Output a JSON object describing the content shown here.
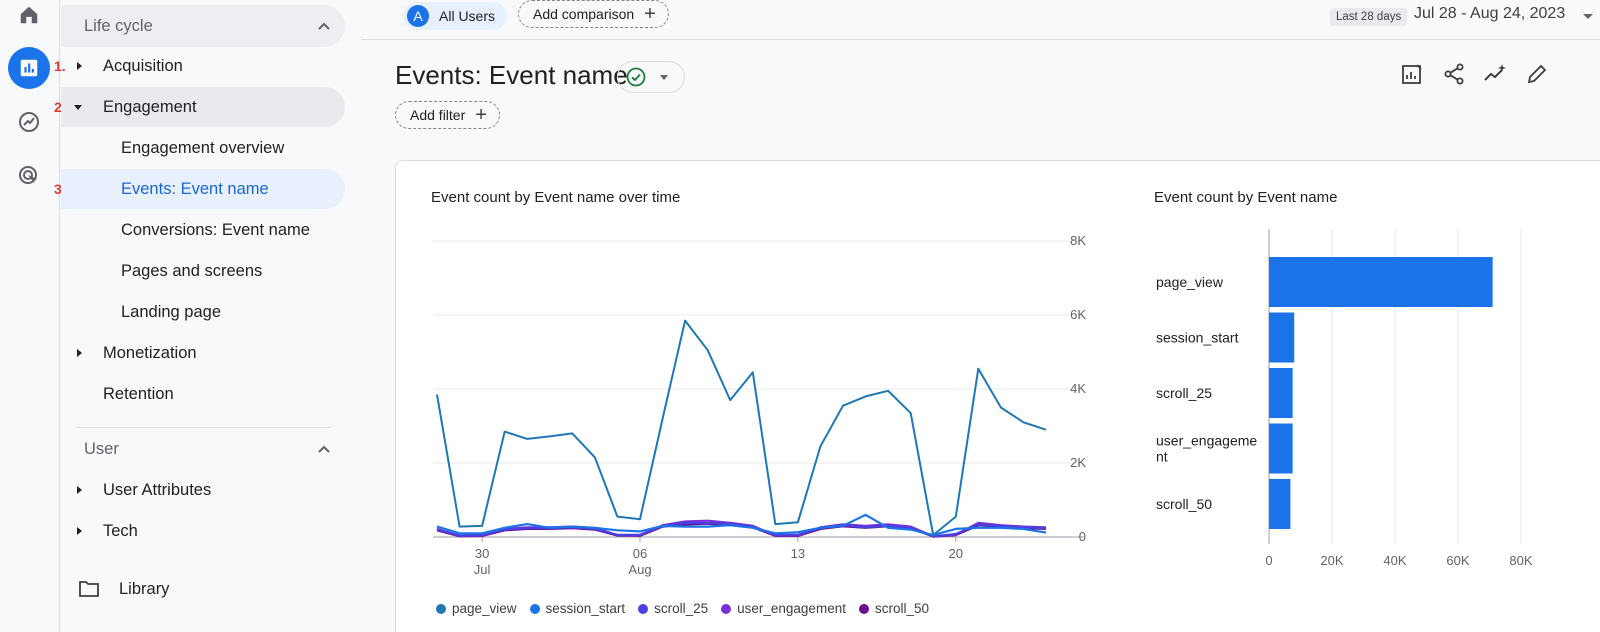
{
  "nav": {
    "lifecycle_label": "Life cycle",
    "user_label": "User",
    "library_label": "Library",
    "annotations": [
      "1.",
      "2.",
      "3."
    ],
    "items": {
      "acquisition": "Acquisition",
      "engagement": "Engagement",
      "engagement_overview": "Engagement overview",
      "events_event_name": "Events: Event name",
      "conversions": "Conversions: Event name",
      "pages_screens": "Pages and screens",
      "landing_page": "Landing page",
      "monetization": "Monetization",
      "retention": "Retention",
      "user_attributes": "User Attributes",
      "tech": "Tech"
    }
  },
  "topbar": {
    "segment_avatar": "A",
    "segment_label": "All Users",
    "add_comparison": "Add comparison",
    "date_range_badge": "Last 28 days",
    "date_range": "Jul 28 - Aug 24, 2023"
  },
  "page": {
    "title": "Events: Event name",
    "add_filter": "Add filter"
  },
  "colors": {
    "accent": "#1a73e8",
    "page_view": "#1f77b4",
    "session_start": "#1a73e8",
    "scroll_25": "#4a3fe0",
    "user_engagement": "#7b2fd8",
    "scroll_50": "#6a0f8e",
    "bar": "#1a73e8"
  },
  "chart_data": [
    {
      "type": "line",
      "title": "Event count by Event name over time",
      "x_tick_labels": [
        {
          "day": "30",
          "month": "Jul",
          "index": 2
        },
        {
          "day": "06",
          "month": "Aug",
          "index": 9
        },
        {
          "day": "13",
          "month": "",
          "index": 16
        },
        {
          "day": "20",
          "month": "",
          "index": 23
        }
      ],
      "y_ticks": [
        "0",
        "2K",
        "4K",
        "6K",
        "8K"
      ],
      "ylim": [
        0,
        8000
      ],
      "yaxis_side": "right",
      "grid": true,
      "legend_position": "bottom",
      "series": [
        {
          "name": "page_view",
          "values": [
            3850,
            280,
            300,
            2850,
            2650,
            2720,
            2800,
            2150,
            550,
            480,
            3200,
            5850,
            5050,
            3700,
            4450,
            350,
            400,
            2450,
            3550,
            3800,
            3950,
            3350,
            50,
            550,
            4550,
            3500,
            3100,
            2900
          ]
        },
        {
          "name": "session_start",
          "values": [
            280,
            100,
            100,
            250,
            350,
            250,
            280,
            250,
            180,
            150,
            300,
            280,
            280,
            320,
            250,
            100,
            130,
            250,
            300,
            600,
            250,
            200,
            50,
            220,
            250,
            250,
            220,
            120
          ]
        },
        {
          "name": "scroll_25",
          "values": [
            200,
            40,
            60,
            200,
            240,
            240,
            260,
            220,
            60,
            60,
            300,
            380,
            380,
            360,
            280,
            60,
            60,
            240,
            320,
            260,
            300,
            240,
            20,
            80,
            340,
            300,
            260,
            240
          ]
        },
        {
          "name": "user_engagement",
          "values": [
            220,
            30,
            40,
            220,
            260,
            260,
            280,
            240,
            50,
            40,
            320,
            420,
            440,
            380,
            300,
            40,
            40,
            260,
            340,
            300,
            340,
            280,
            20,
            60,
            380,
            320,
            280,
            260
          ]
        },
        {
          "name": "scroll_50",
          "values": [
            180,
            20,
            30,
            180,
            220,
            220,
            240,
            200,
            40,
            30,
            280,
            340,
            360,
            320,
            260,
            30,
            30,
            220,
            290,
            250,
            290,
            240,
            10,
            50,
            320,
            280,
            240,
            220
          ]
        }
      ]
    },
    {
      "type": "bar",
      "title": "Event count by Event name",
      "orientation": "horizontal",
      "categories": [
        "page_view",
        "session_start",
        "scroll_25",
        "user_engageme\nnt",
        "scroll_50"
      ],
      "values": [
        71000,
        8000,
        7500,
        7500,
        6800
      ],
      "x_ticks": [
        "0",
        "20K",
        "40K",
        "60K",
        "80K"
      ],
      "xlim": [
        0,
        80000
      ],
      "grid": true
    }
  ]
}
